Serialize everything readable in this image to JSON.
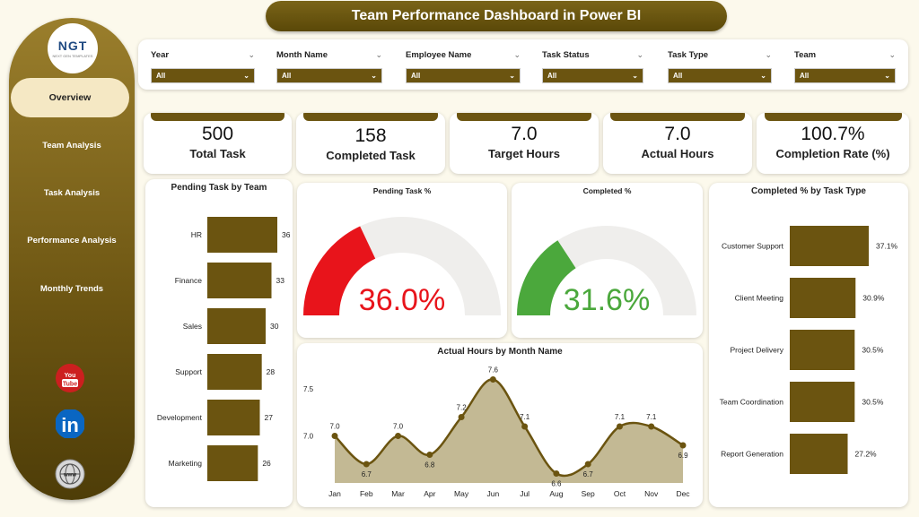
{
  "header": {
    "title": "Team Performance Dashboard in Power BI"
  },
  "sidebar": {
    "logo_text": "NGT",
    "logo_sub": "NEXT GEN TEMPLATES",
    "items": [
      {
        "label": "Overview",
        "active": true
      },
      {
        "label": "Team Analysis"
      },
      {
        "label": "Task Analysis"
      },
      {
        "label": "Performance Analysis"
      },
      {
        "label": "Monthly Trends"
      }
    ],
    "social": [
      {
        "name": "youtube",
        "label": "You Tube",
        "color": "#cc1f1f"
      },
      {
        "name": "linkedin",
        "label": "in",
        "color": "#0a66c2"
      },
      {
        "name": "website",
        "label": "www",
        "color": "#9c9c9c"
      }
    ]
  },
  "filters": [
    {
      "label": "Year",
      "value": "All"
    },
    {
      "label": "Month Name",
      "value": "All"
    },
    {
      "label": "Employee Name",
      "value": "All"
    },
    {
      "label": "Task Status",
      "value": "All"
    },
    {
      "label": "Task Type",
      "value": "All"
    },
    {
      "label": "Team",
      "value": "All"
    }
  ],
  "kpis": [
    {
      "value": "500",
      "label": "Total Task"
    },
    {
      "value": "158",
      "label": "Completed Task"
    },
    {
      "value": "7.0",
      "label": "Target Hours"
    },
    {
      "value": "7.0",
      "label": "Actual Hours"
    },
    {
      "value": "100.7%",
      "label": "Completion Rate (%)"
    }
  ],
  "colors": {
    "brand": "#6b5410",
    "gauge_red": "#e8141b",
    "gauge_green": "#4ba83c",
    "area_fill": "#c3b994",
    "bg": "#fcf9ec"
  },
  "chart_data": [
    {
      "type": "bar",
      "orientation": "horizontal",
      "title": "Pending Task by Team",
      "categories": [
        "HR",
        "Finance",
        "Sales",
        "Support",
        "Development",
        "Marketing"
      ],
      "values": [
        36,
        33,
        30,
        28,
        27,
        26
      ]
    },
    {
      "type": "gauge",
      "title": "Pending Task %",
      "value": 36.0,
      "label": "36.0%",
      "max": 100
    },
    {
      "type": "gauge",
      "title": "Completed %",
      "value": 31.6,
      "label": "31.6%",
      "max": 100
    },
    {
      "type": "bar",
      "orientation": "horizontal",
      "title": "Completed % by Task Type",
      "categories": [
        "Customer Support",
        "Client Meeting",
        "Project Delivery",
        "Team Coordination",
        "Report Generation"
      ],
      "values": [
        37.1,
        30.9,
        30.5,
        30.5,
        27.2
      ],
      "labels": [
        "37.1%",
        "30.9%",
        "30.5%",
        "30.5%",
        "27.2%"
      ]
    },
    {
      "type": "area",
      "title": "Actual Hours by Month Name",
      "categories": [
        "Jan",
        "Feb",
        "Mar",
        "Apr",
        "May",
        "Jun",
        "Jul",
        "Aug",
        "Sep",
        "Oct",
        "Nov",
        "Dec"
      ],
      "values": [
        7.0,
        6.7,
        7.0,
        6.8,
        7.2,
        7.6,
        7.1,
        6.6,
        6.7,
        7.1,
        7.1,
        6.9
      ],
      "yticks": [
        "7.0",
        "7.5"
      ],
      "ylim": [
        6.5,
        7.7
      ]
    }
  ]
}
